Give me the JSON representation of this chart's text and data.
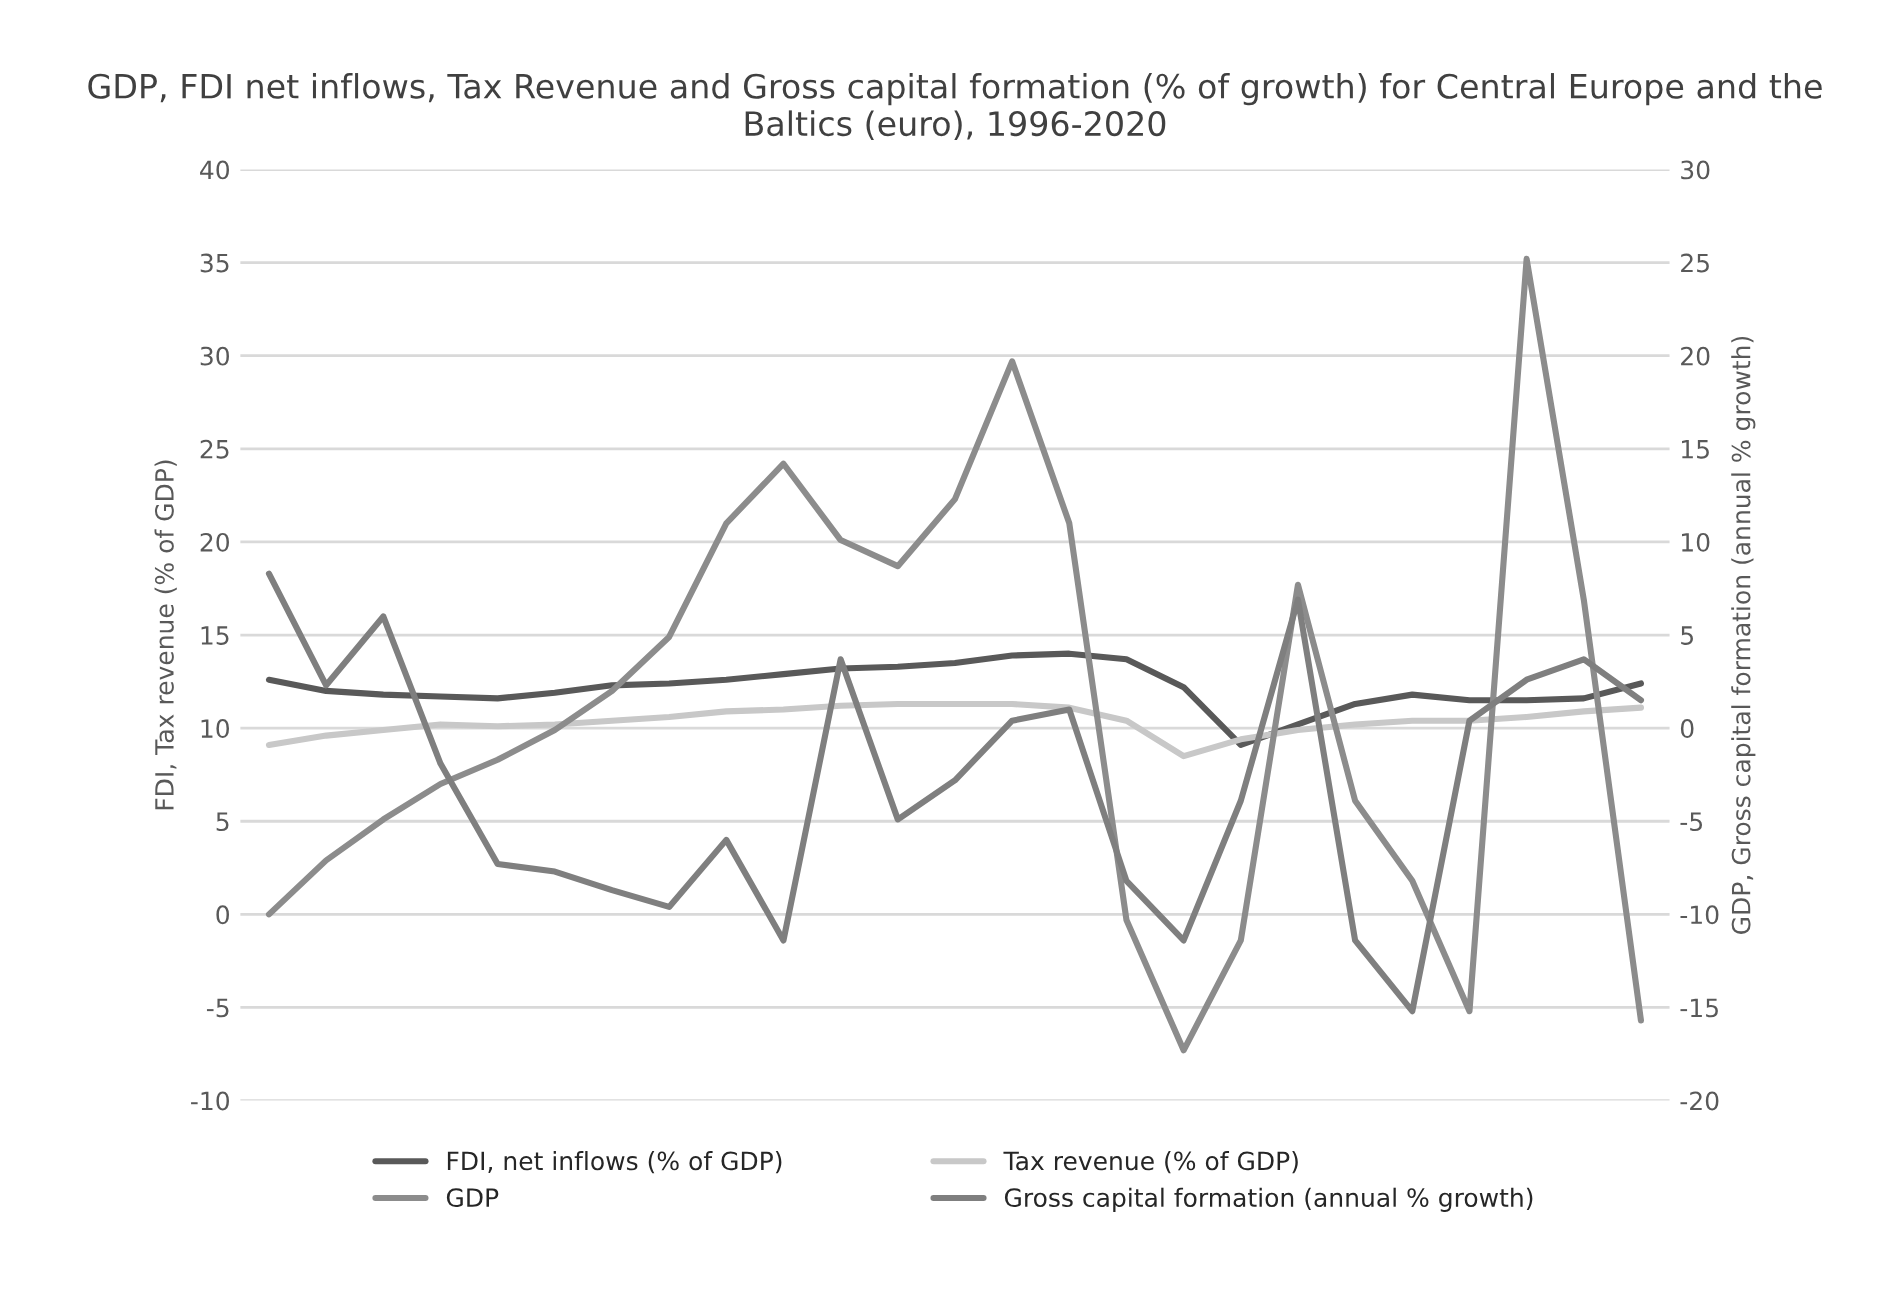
{
  "chart_data": {
    "type": "line",
    "title": "GDP, FDI net inflows, Tax Revenue and Gross capital formation (% of growth) for Central Europe and the Baltics (euro), 1996-2020",
    "ylabel": "FDI, Tax revenue (% of GDP)",
    "y2label": "GDP, Gross capital formation (annual % growth)",
    "categories": [
      null,
      null,
      null,
      null,
      null,
      null,
      null,
      null,
      null,
      null,
      null,
      null,
      null,
      null,
      null,
      null,
      null,
      null,
      null,
      null,
      null,
      null,
      null,
      null,
      null
    ],
    "series": [
      {
        "name": "FDI, net inflows (% of GDP)",
        "color": "#595959",
        "values": [
          12.6,
          12.0,
          11.8,
          11.7,
          11.6,
          11.9,
          12.3,
          12.4,
          12.6,
          12.9,
          13.2,
          13.3,
          13.5,
          13.9,
          14.0,
          13.7,
          12.2,
          9.1,
          10.2,
          11.3,
          11.8,
          11.5,
          11.5,
          11.6,
          12.4
        ]
      },
      {
        "name": "GDP",
        "color": "#8c8c8c",
        "axis": "y2",
        "values": [
          -10.0,
          -7.1,
          -4.9,
          -3.0,
          -1.7,
          -0.1,
          2.0,
          4.9,
          11.0,
          14.2,
          10.1,
          8.7,
          12.3,
          19.7,
          11.0,
          -10.3,
          -17.3,
          -11.4,
          7.7,
          -3.9,
          -8.2,
          -15.2,
          25.2,
          6.9,
          -15.7
        ]
      },
      {
        "name": "Tax revenue (% of GDP)",
        "color": "#c8c8c8",
        "values": [
          9.1,
          9.6,
          9.9,
          10.2,
          10.1,
          10.2,
          10.4,
          10.6,
          10.9,
          11.0,
          11.2,
          11.3,
          11.3,
          11.3,
          11.1,
          10.4,
          8.5,
          9.4,
          9.9,
          10.2,
          10.4,
          10.4,
          10.6,
          10.9,
          11.1
        ]
      },
      {
        "name": "Gross capital formation (annual % growth)",
        "color": "#7f7f7f",
        "axis": "y2",
        "values": [
          8.3,
          2.3,
          6.0,
          -1.9,
          -7.3,
          -7.7,
          -8.7,
          -9.6,
          -6.0,
          -11.4,
          3.7,
          -4.9,
          -2.8,
          0.4,
          1.0,
          -8.2,
          -11.4,
          -3.9,
          6.9,
          -11.4,
          -15.2,
          0.4,
          2.6,
          3.7,
          1.5
        ]
      }
    ],
    "ylim": [
      -10,
      40
    ],
    "yticks": [
      -10,
      -5,
      0,
      5,
      10,
      15,
      20,
      25,
      30,
      35,
      40
    ],
    "y2lim": [
      -20,
      30
    ],
    "y2ticks": [
      -20,
      -15,
      -10,
      -5,
      0,
      5,
      10,
      15,
      20,
      25,
      30
    ],
    "grid": "y",
    "legend": "bottom",
    "marker": "none",
    "line_style": "solid"
  }
}
